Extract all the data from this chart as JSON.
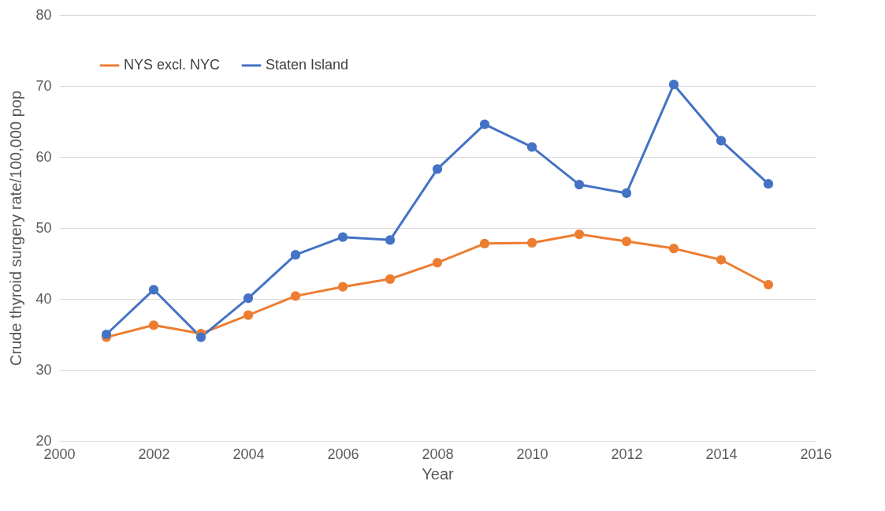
{
  "chart_data": {
    "type": "line",
    "xlabel": "Year",
    "ylabel": "Crude thyroid surgery rate/100,000 pop",
    "x": [
      2001,
      2002,
      2003,
      2004,
      2005,
      2006,
      2007,
      2008,
      2009,
      2010,
      2011,
      2012,
      2013,
      2014,
      2015
    ],
    "series": [
      {
        "name": "NYS excl. NYC",
        "color": "#ed7d31",
        "values": [
          34.6,
          36.3,
          35.1,
          37.7,
          40.4,
          41.7,
          42.8,
          45.1,
          47.8,
          47.9,
          49.1,
          48.1,
          47.1,
          45.5,
          42.0
        ]
      },
      {
        "name": "Staten Island",
        "color": "#4472c4",
        "values": [
          35.0,
          41.3,
          34.6,
          40.1,
          46.2,
          48.7,
          48.3,
          58.3,
          64.6,
          61.4,
          56.1,
          54.9,
          70.2,
          62.3,
          56.2
        ]
      }
    ],
    "xlim": [
      2000,
      2016
    ],
    "xticks": [
      2000,
      2002,
      2004,
      2006,
      2008,
      2010,
      2012,
      2014,
      2016
    ],
    "ylim": [
      20,
      80
    ],
    "yticks": [
      20,
      30,
      40,
      50,
      60,
      70,
      80
    ],
    "grid": "y",
    "legend": "top left",
    "marker": "circle",
    "line_style": "solid"
  }
}
